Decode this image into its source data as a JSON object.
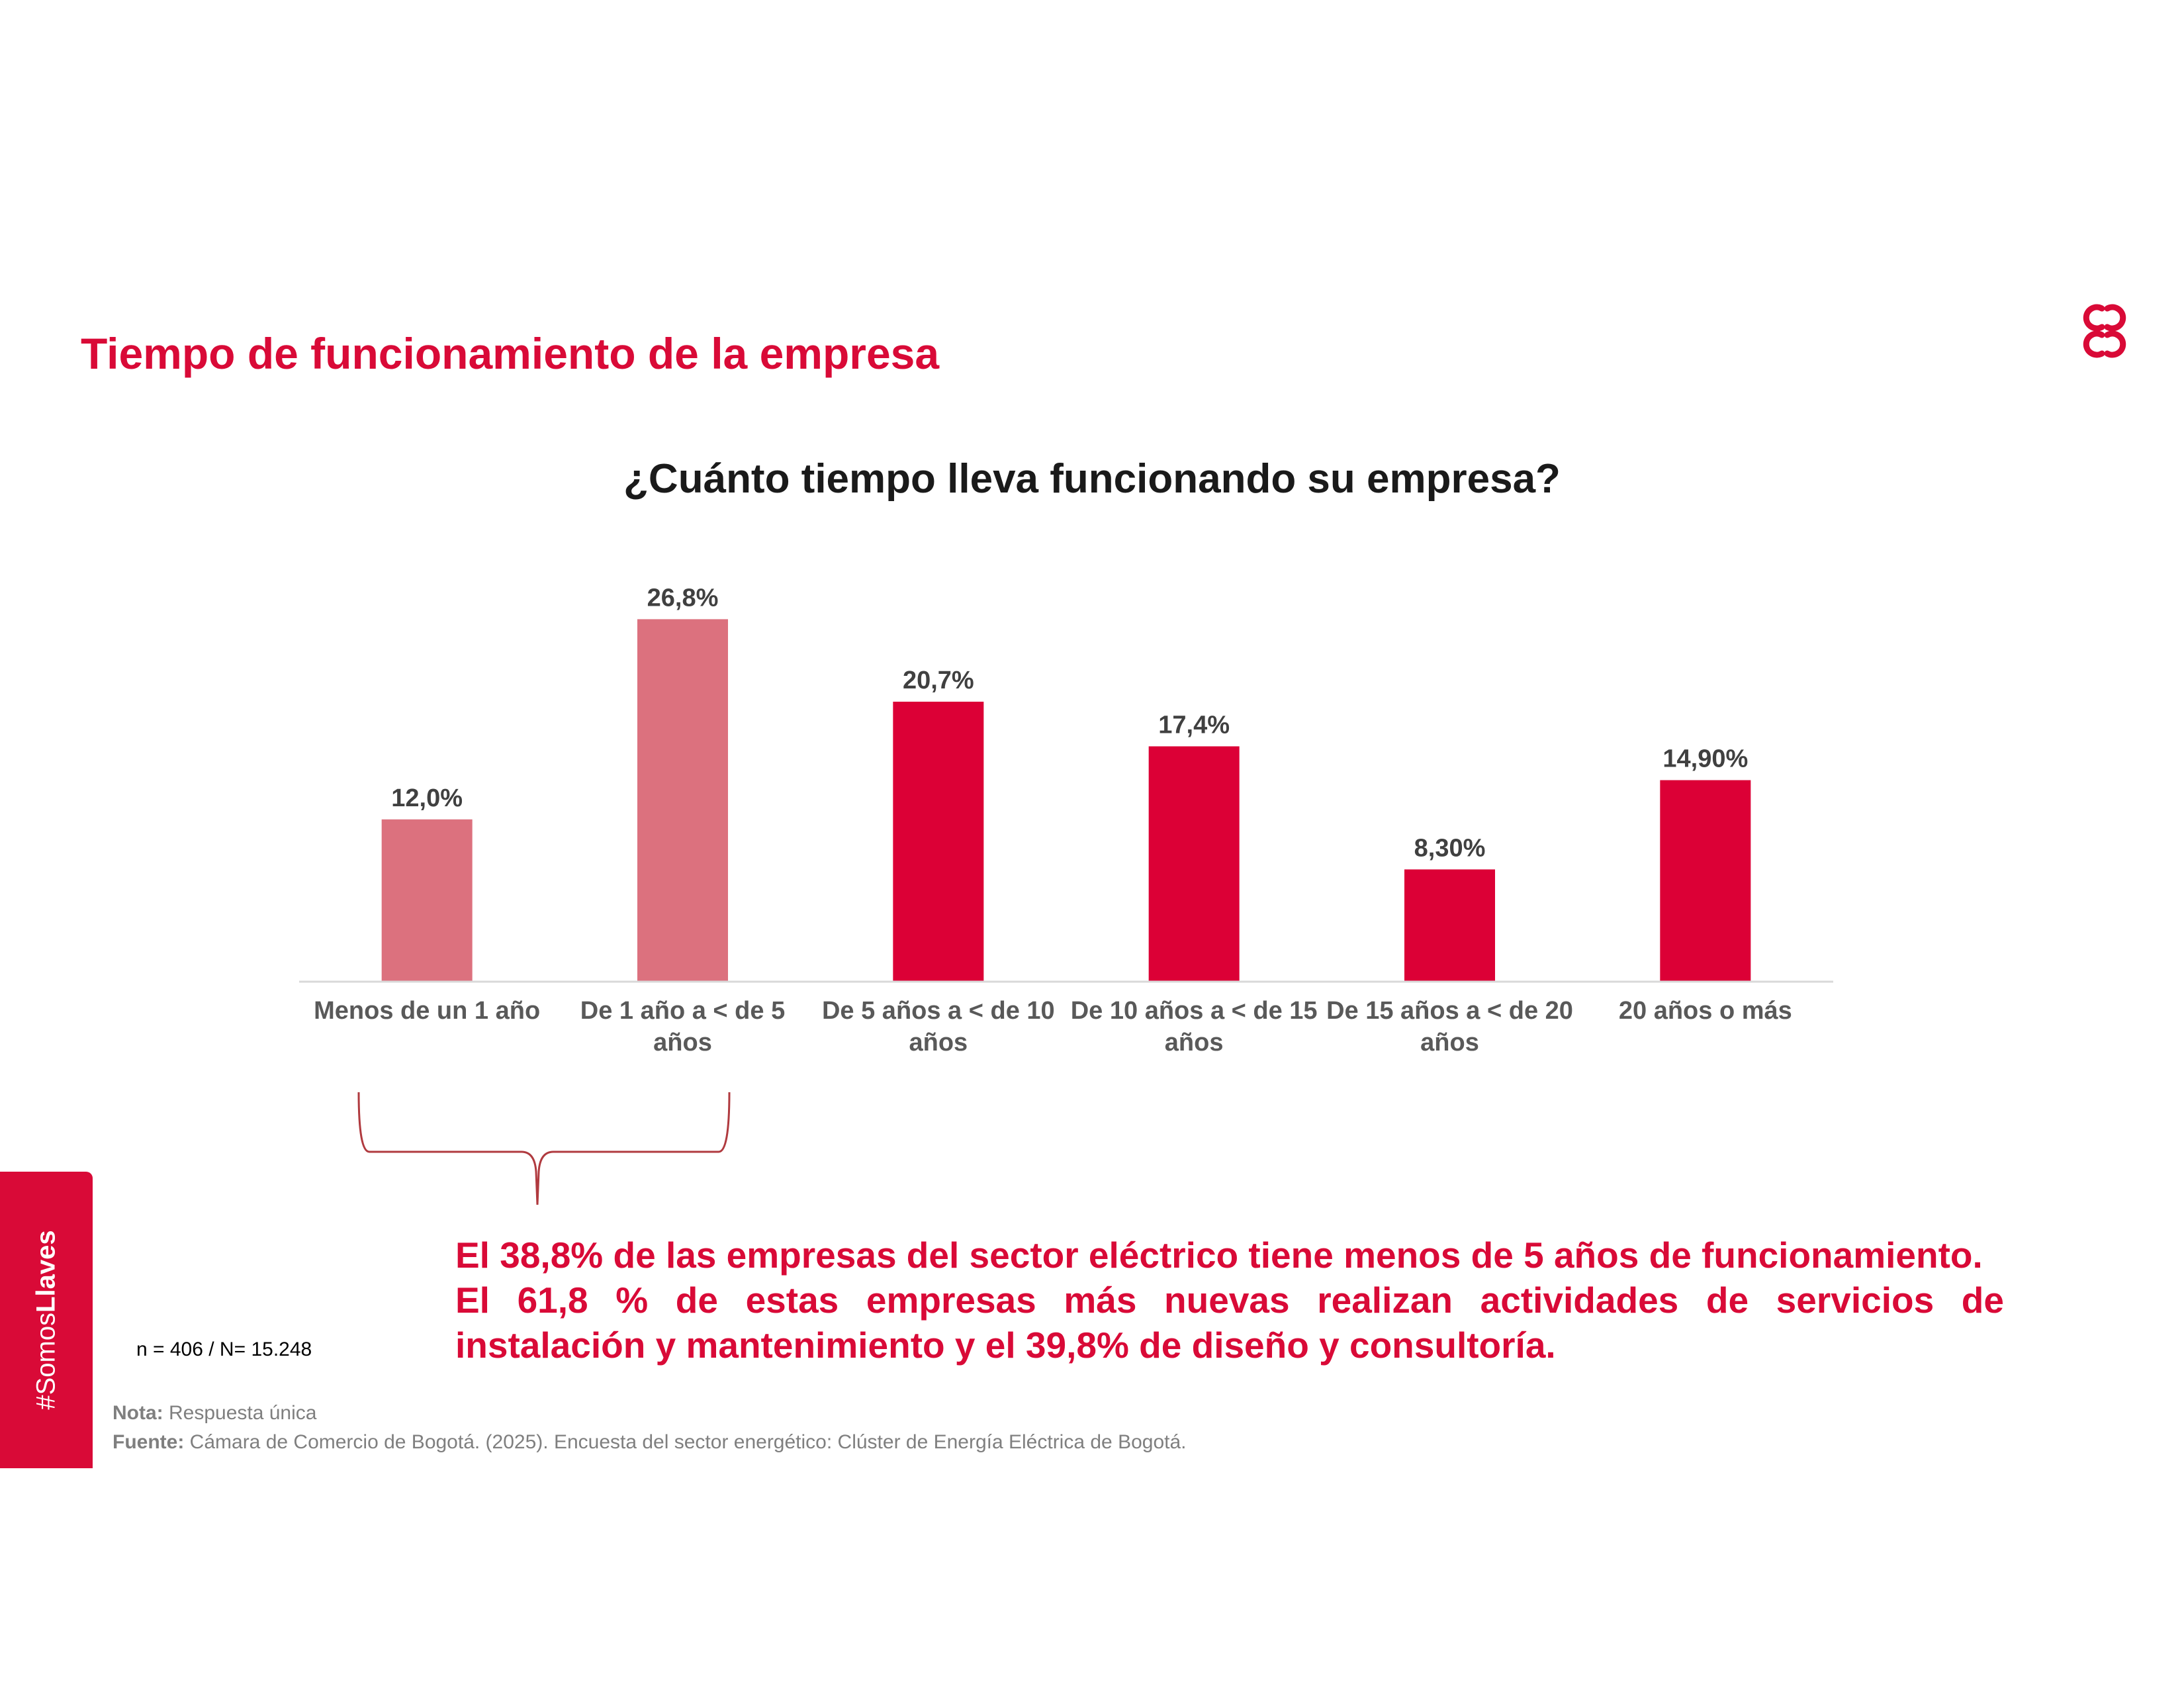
{
  "page": {
    "title": "Tiempo de funcionamiento de la empresa",
    "logo_icon": "camara-comercio-logo-icon"
  },
  "chart_data": {
    "type": "bar",
    "title": "¿Cuánto tiempo lleva funcionando su empresa?",
    "categories": [
      "Menos de un 1 año",
      "De 1 año a < de 5 años",
      "De 5 años a < de 10 años",
      "De 10 años a < de 15 años",
      "De 15 años a < de 20 años",
      "20 años o más"
    ],
    "values": [
      12.0,
      26.8,
      20.7,
      17.4,
      8.3,
      14.9
    ],
    "data_labels": [
      "12,0%",
      "26,8%",
      "20,7%",
      "17,4%",
      "8,30%",
      "14,90%"
    ],
    "highlighted": [
      true,
      true,
      false,
      false,
      false,
      false
    ],
    "colors": {
      "highlight": "#dc717e",
      "default": "#dc0036"
    },
    "xlabel": "",
    "ylabel": "",
    "ylim": [
      0,
      30
    ],
    "grid": false,
    "legend": "none"
  },
  "sidebar": {
    "prefix": "#Somos",
    "bold": "Llaves"
  },
  "sample_note": "n = 406 / N= 15.248",
  "highlight_text": {
    "line1": "El 38,8% de las empresas del sector eléctrico tiene menos de 5 años de funcionamiento.",
    "line2": "El 61,8 % de estas empresas más nuevas realizan actividades de servicios de",
    "line3": "instalación y mantenimiento y el 39,8% de diseño y consultoría."
  },
  "footnotes": {
    "nota_label": "Nota:",
    "nota_text": " Respuesta única",
    "fuente_label": "Fuente:",
    "fuente_text": " Cámara de Comercio de Bogotá. (2025). Encuesta del sector energético: Clúster de Energía Eléctrica de Bogotá."
  }
}
